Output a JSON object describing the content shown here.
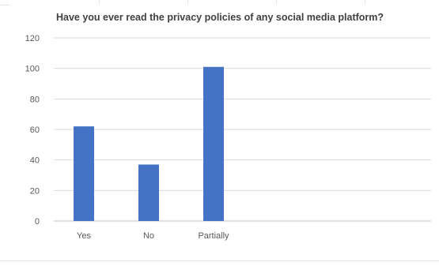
{
  "chart_data": {
    "type": "bar",
    "title": "Have you ever read the privacy policies of any social media platform?",
    "categories": [
      "Yes",
      "No",
      "Partially"
    ],
    "values": [
      62,
      37,
      101
    ],
    "ylim": [
      0,
      120
    ],
    "yticks": [
      0,
      20,
      40,
      60,
      80,
      100,
      120
    ],
    "xlabel": "",
    "ylabel": "",
    "grid": true,
    "legend": "none",
    "bar_color": "#4472c4",
    "grid_color": "#d9d9d9"
  }
}
